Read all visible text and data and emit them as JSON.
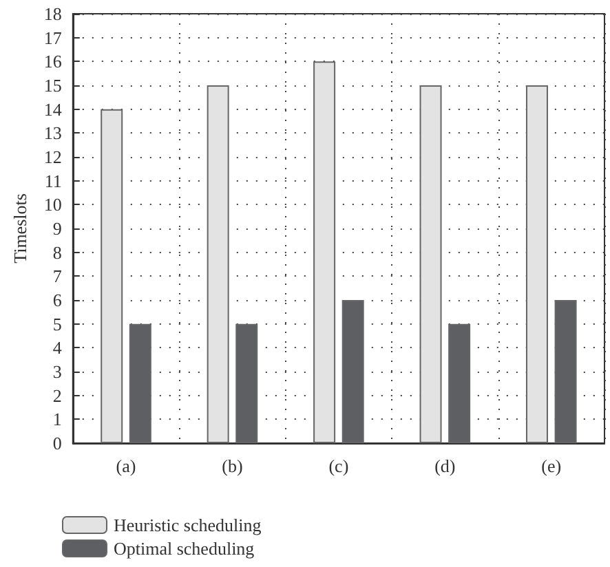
{
  "chart_data": {
    "type": "bar",
    "ylabel": "Timeslots",
    "categories": [
      "(a)",
      "(b)",
      "(c)",
      "(d)",
      "(e)"
    ],
    "series": [
      {
        "name": "Heuristic scheduling",
        "color": "#e3e3e3",
        "values": [
          14,
          15,
          16,
          15,
          15
        ]
      },
      {
        "name": "Optimal scheduling",
        "color": "#5e5f63",
        "values": [
          5,
          5,
          6,
          5,
          6
        ]
      }
    ],
    "ylim": [
      0,
      18
    ],
    "yticks": [
      0,
      1,
      2,
      3,
      4,
      5,
      6,
      7,
      8,
      9,
      10,
      11,
      12,
      13,
      14,
      15,
      16,
      17,
      18
    ],
    "grid": true,
    "legend": "bottom left"
  }
}
